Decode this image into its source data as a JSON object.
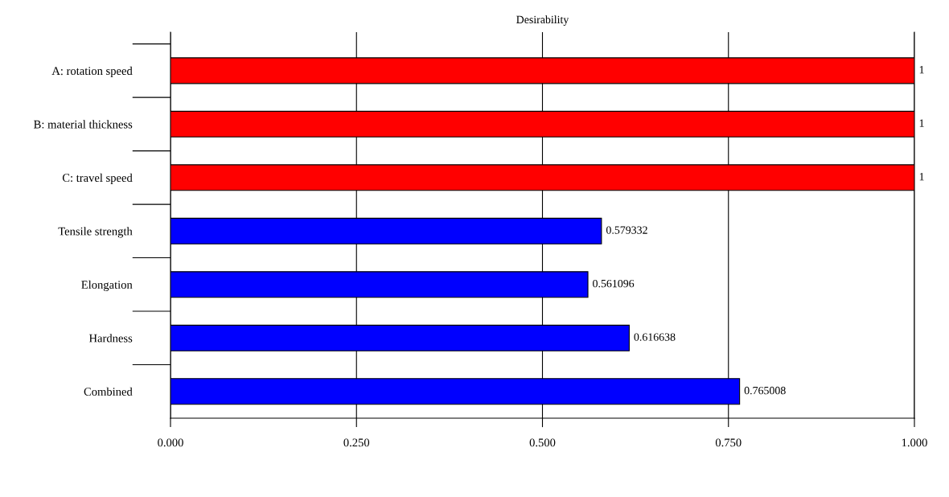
{
  "chart_data": {
    "type": "bar",
    "orientation": "horizontal",
    "title": "Desirability",
    "categories": [
      "A: rotation speed",
      "B: material thickness",
      "C: travel speed",
      "Tensile strength",
      "Elongation",
      "Hardness",
      "Combined"
    ],
    "values": [
      1,
      1,
      1,
      0.579332,
      0.561096,
      0.616638,
      0.765008
    ],
    "colors": [
      "#ff0000",
      "#ff0000",
      "#ff0000",
      "#0000ff",
      "#0000ff",
      "#0000ff",
      "#0000ff"
    ],
    "xlim": [
      0,
      1
    ],
    "xticks": [
      {
        "value": 0,
        "label": "0.000"
      },
      {
        "value": 0.25,
        "label": "0.250"
      },
      {
        "value": 0.5,
        "label": "0.500"
      },
      {
        "value": 0.75,
        "label": "0.750"
      },
      {
        "value": 1,
        "label": "1.000"
      }
    ],
    "grid": "x",
    "data_labels": true
  }
}
